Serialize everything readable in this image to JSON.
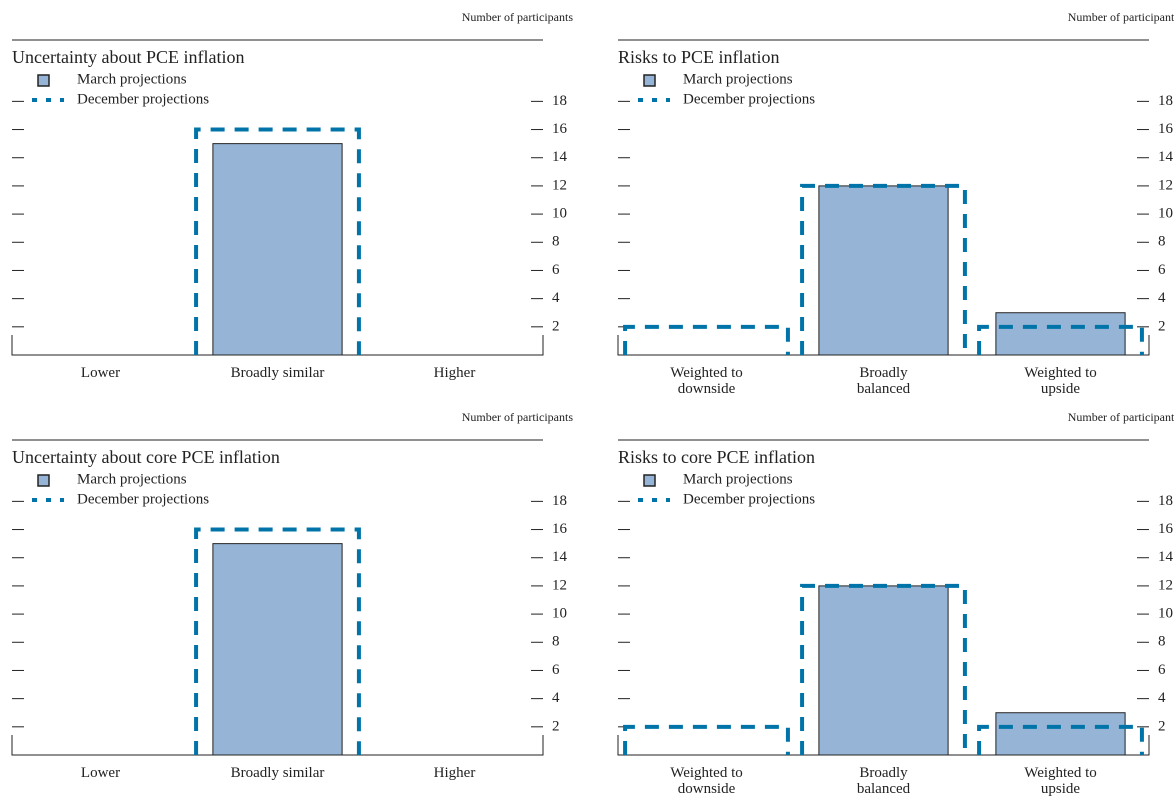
{
  "chart_data": [
    {
      "type": "bar",
      "title": "Uncertainty about PCE inflation",
      "y_label": "Number of participants",
      "categories": [
        "Lower",
        "Broadly similar",
        "Higher"
      ],
      "series": [
        {
          "name": "March projections",
          "color": "#96b5d6",
          "values": [
            0,
            15,
            0
          ]
        },
        {
          "name": "December projections",
          "color": "#0074a8",
          "style": "dashed",
          "values": [
            0,
            16,
            0
          ]
        }
      ],
      "ylim": [
        0,
        22
      ],
      "yticks": [
        2,
        4,
        6,
        8,
        10,
        12,
        14,
        16,
        18
      ]
    },
    {
      "type": "bar",
      "title": "Risks to PCE inflation",
      "y_label": "Number of participants",
      "categories": [
        "Weighted to downside",
        "Broadly balanced",
        "Weighted to upside"
      ],
      "series": [
        {
          "name": "March projections",
          "color": "#96b5d6",
          "values": [
            0,
            12,
            3
          ]
        },
        {
          "name": "December projections",
          "color": "#0074a8",
          "style": "dashed",
          "values": [
            2,
            12,
            2
          ]
        }
      ],
      "ylim": [
        0,
        22
      ],
      "yticks": [
        2,
        4,
        6,
        8,
        10,
        12,
        14,
        16,
        18
      ]
    },
    {
      "type": "bar",
      "title": "Uncertainty about core PCE inflation",
      "y_label": "Number of participants",
      "categories": [
        "Lower",
        "Broadly similar",
        "Higher"
      ],
      "series": [
        {
          "name": "March projections",
          "color": "#96b5d6",
          "values": [
            0,
            15,
            0
          ]
        },
        {
          "name": "December projections",
          "color": "#0074a8",
          "style": "dashed",
          "values": [
            0,
            16,
            0
          ]
        }
      ],
      "ylim": [
        0,
        22
      ],
      "yticks": [
        2,
        4,
        6,
        8,
        10,
        12,
        14,
        16,
        18
      ]
    },
    {
      "type": "bar",
      "title": "Risks to core PCE inflation",
      "y_label": "Number of participants",
      "categories": [
        "Weighted to downside",
        "Broadly balanced",
        "Weighted to upside"
      ],
      "series": [
        {
          "name": "March projections",
          "color": "#96b5d6",
          "values": [
            0,
            12,
            3
          ]
        },
        {
          "name": "December projections",
          "color": "#0074a8",
          "style": "dashed",
          "values": [
            2,
            12,
            2
          ]
        }
      ],
      "ylim": [
        0,
        22
      ],
      "yticks": [
        2,
        4,
        6,
        8,
        10,
        12,
        14,
        16,
        18
      ]
    }
  ]
}
